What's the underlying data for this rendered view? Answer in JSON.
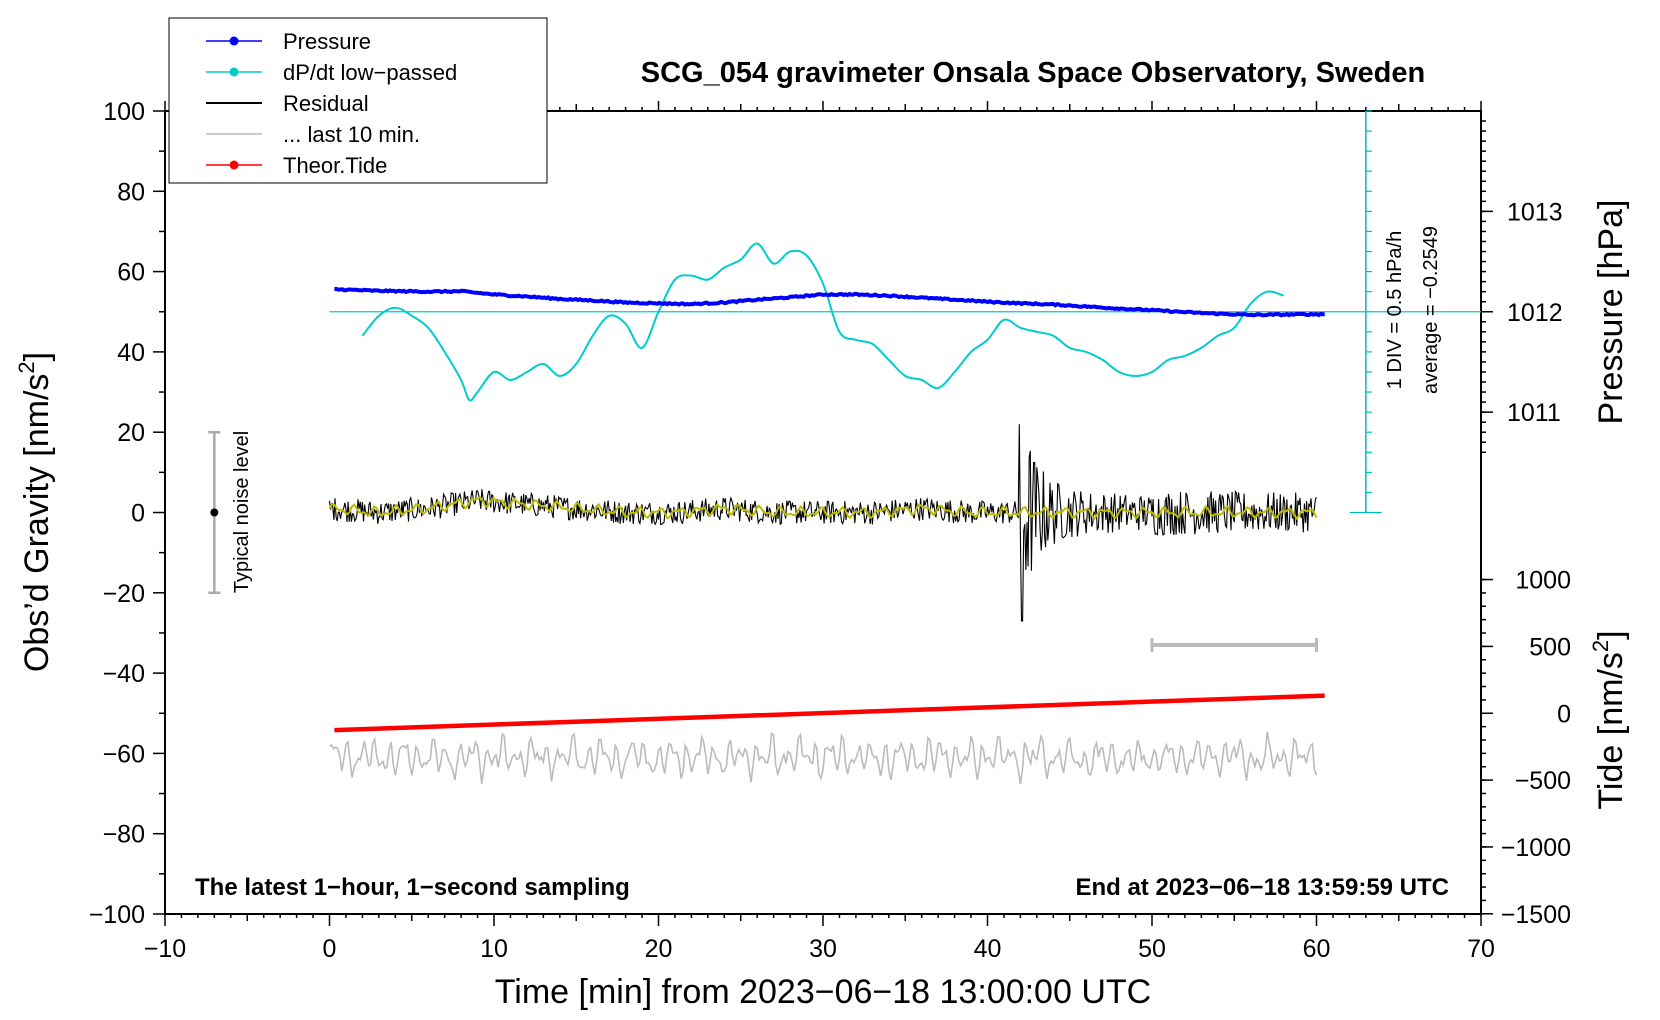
{
  "chart_data": {
    "type": "line",
    "title": "SCG_054 gravimeter Onsala Space Observatory, Sweden",
    "xlabel": "Time [min] from 2023−06−18 13:00:00 UTC",
    "ylabel_main": "Obs’d Gravity [nm/s",
    "ylabel_sup": "2",
    "ylabel_close": "]",
    "ylabel_pressure": "Pressure [hPa]",
    "ylabel_tide_main": "Tide [nm/s",
    "ylabel_tide_sup": "2",
    "ylabel_tide_close": "]",
    "xlim": [
      -10,
      70
    ],
    "ylim": [
      -100,
      100
    ],
    "x_ticks": [
      -10,
      0,
      10,
      20,
      30,
      40,
      50,
      60,
      70
    ],
    "x_tick_labels": [
      "−10",
      "0",
      "10",
      "20",
      "30",
      "40",
      "50",
      "60",
      "70"
    ],
    "y_ticks": [
      -100,
      -80,
      -60,
      -40,
      -20,
      0,
      20,
      40,
      60,
      80,
      100
    ],
    "y_tick_labels": [
      "−100",
      "−80",
      "−60",
      "−40",
      "−20",
      "0",
      "20",
      "40",
      "60",
      "80",
      "100"
    ],
    "pressure_axis": {
      "ticks": [
        1011,
        1012,
        1013
      ],
      "tick_labels": [
        "1011",
        "1012",
        "1013"
      ],
      "gravity_at_1012": 50,
      "gravity_per_hpa": 25
    },
    "tide_axis": {
      "ticks": [
        -1500,
        -1000,
        -500,
        0,
        500,
        1000
      ],
      "tick_labels": [
        "−1500",
        "−1000",
        "−500",
        "0",
        "500",
        "1000"
      ],
      "gravity_at_zero": -50,
      "gravity_per_unit": 0.0333
    },
    "dpdt_scale": {
      "label_div": "1 DIV = 0.5 hPa/h",
      "label_avg": "average = −0.2549",
      "x": 63,
      "y_range": [
        0,
        100
      ],
      "divisions": 20
    },
    "annotation_left": "The latest 1−hour, 1−second sampling",
    "annotation_right": "End at 2023−06−18 13:59:59 UTC",
    "noise_label": "Typical noise level",
    "noise_bar": {
      "x": -7,
      "y_low": -20,
      "y_high": 20,
      "y_mid": 0
    },
    "last10_bar": {
      "x_start": 50,
      "x_end": 60,
      "y": -33
    },
    "legend": [
      {
        "name": "Pressure",
        "color": "#0000ff",
        "marker": true
      },
      {
        "name": "dP/dt low−passed",
        "color": "#00cccc",
        "marker": true
      },
      {
        "name": "Residual",
        "color": "#000000",
        "marker": false
      },
      {
        "name": "... last 10 min.",
        "color": "#bbbbbb",
        "marker": false
      },
      {
        "name": "Theor.Tide",
        "color": "#ff0000",
        "marker": true
      }
    ],
    "series": [
      {
        "name": "Pressure",
        "color": "#0000ff",
        "x": [
          0.3,
          3,
          6,
          8,
          10,
          12,
          14,
          16,
          18,
          20,
          22,
          24,
          26,
          28,
          30,
          32,
          34,
          36,
          38,
          40,
          42,
          44,
          46,
          48,
          50,
          52,
          54,
          56,
          58,
          60.5
        ],
        "y": [
          55.6,
          55.2,
          55.0,
          55.1,
          54.3,
          53.8,
          53.2,
          52.8,
          52.3,
          52.1,
          51.9,
          52.3,
          53.0,
          53.6,
          54.3,
          54.3,
          54.0,
          53.5,
          53.0,
          52.5,
          52.1,
          51.8,
          51.3,
          50.8,
          50.4,
          49.9,
          49.5,
          49.2,
          49.3,
          49.4
        ]
      },
      {
        "name": "dP/dt low-passed",
        "color": "#00cccc",
        "x": [
          2,
          3,
          4,
          5,
          6,
          7,
          8,
          8.5,
          9,
          10,
          11,
          12,
          13,
          14,
          15,
          16,
          17,
          18,
          19,
          20,
          21,
          22,
          23,
          24,
          25,
          26,
          27,
          28,
          29,
          30,
          31,
          32,
          33,
          34,
          35,
          36,
          37,
          38,
          39,
          40,
          41,
          42,
          43,
          44,
          45,
          46,
          47,
          48,
          49,
          50,
          51,
          52,
          53,
          54,
          55,
          56,
          57,
          58
        ],
        "y": [
          44,
          49,
          51,
          49,
          46,
          40,
          33,
          28,
          30,
          35,
          33,
          35,
          37,
          34,
          37,
          44,
          49,
          47,
          41,
          50,
          58,
          59,
          58,
          61,
          63,
          67,
          62,
          65,
          64,
          57,
          45,
          43,
          42,
          38,
          34,
          33,
          31,
          35,
          40,
          43,
          48,
          46,
          45,
          44,
          41,
          40,
          38,
          35,
          34,
          35,
          38,
          39,
          41,
          44,
          46,
          52,
          55,
          54
        ]
      },
      {
        "name": "Residual",
        "color": "#000000",
        "x_start": 0,
        "x_end": 60,
        "baseline": [
          1,
          0,
          1,
          3,
          2,
          1,
          0,
          0,
          1,
          0,
          0,
          0,
          1,
          0,
          0,
          0,
          0,
          0,
          0,
          0,
          0
        ],
        "noise_amplitude": 3,
        "quake_x": 42,
        "quake_y_max": 22,
        "quake_y_min": -27
      },
      {
        "name": "Smoothed residual",
        "color": "#bbbb00",
        "x_start": 0,
        "x_end": 60,
        "baseline": [
          1,
          0,
          1,
          3,
          2,
          1,
          0,
          0,
          1,
          0,
          0,
          0,
          1,
          0,
          0,
          0,
          0,
          0,
          0,
          0,
          0
        ]
      },
      {
        "name": "Theor.Tide",
        "color": "#ff0000",
        "x": [
          0.3,
          60.5
        ],
        "y": [
          -54.2,
          -45.6
        ]
      },
      {
        "name": "Last 10 min",
        "color": "#bbbbbb",
        "x_start": 0,
        "x_end": 60,
        "center": -61,
        "amplitude": 4
      }
    ]
  }
}
